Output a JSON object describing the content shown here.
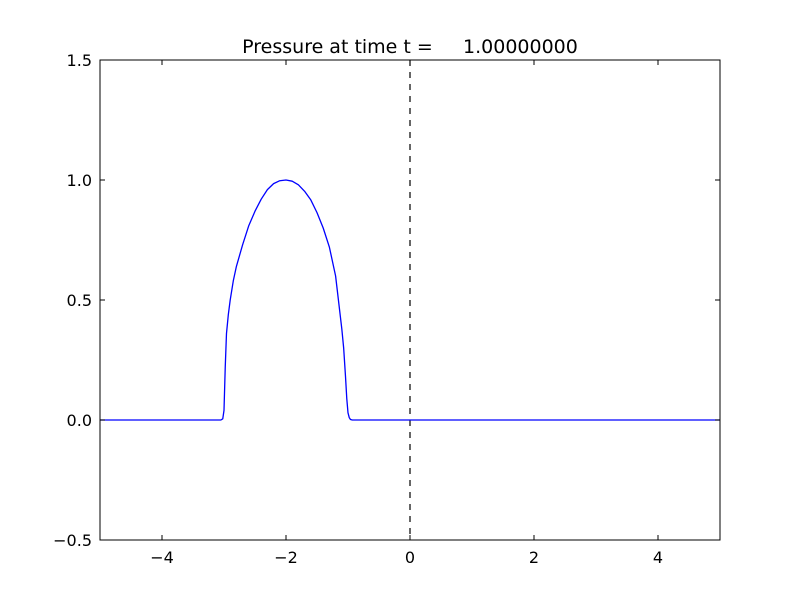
{
  "chart_data": {
    "type": "line",
    "title": "Pressure at time t =     1.00000000",
    "xlabel": "",
    "ylabel": "",
    "xlim": [
      -5,
      5
    ],
    "ylim": [
      -0.5,
      1.5
    ],
    "grid": false,
    "x_ticks": [
      -4,
      -2,
      0,
      2,
      4
    ],
    "x_tick_labels": [
      "−4",
      "−2",
      "0",
      "2",
      "4"
    ],
    "y_ticks": [
      -0.5,
      0.0,
      0.5,
      1.0,
      1.5
    ],
    "y_tick_labels": [
      "−0.5",
      "0.0",
      "0.5",
      "1.0",
      "1.5"
    ],
    "series": [
      {
        "color": "#0000ff",
        "x": [
          -5.0,
          -3.05,
          -3.02,
          -3.0,
          -2.98,
          -2.96,
          -2.93,
          -2.9,
          -2.85,
          -2.8,
          -2.7,
          -2.6,
          -2.5,
          -2.4,
          -2.3,
          -2.2,
          -2.1,
          -2.0,
          -1.9,
          -1.8,
          -1.7,
          -1.6,
          -1.5,
          -1.4,
          -1.3,
          -1.2,
          -1.1,
          -1.07,
          -1.04,
          -1.02,
          -1.0,
          -0.98,
          -0.96,
          -0.93,
          5.0
        ],
        "y": [
          0.0,
          0.0,
          0.005,
          0.04,
          0.22,
          0.36,
          0.44,
          0.5,
          0.58,
          0.64,
          0.73,
          0.81,
          0.87,
          0.92,
          0.96,
          0.985,
          0.997,
          1.0,
          0.995,
          0.98,
          0.953,
          0.917,
          0.864,
          0.8,
          0.72,
          0.6,
          0.38,
          0.3,
          0.18,
          0.09,
          0.03,
          0.01,
          0.002,
          0.0,
          0.0
        ]
      }
    ],
    "reference_lines": [
      {
        "orientation": "vertical",
        "x": 0,
        "style": "dashed",
        "color": "#000000"
      }
    ]
  }
}
